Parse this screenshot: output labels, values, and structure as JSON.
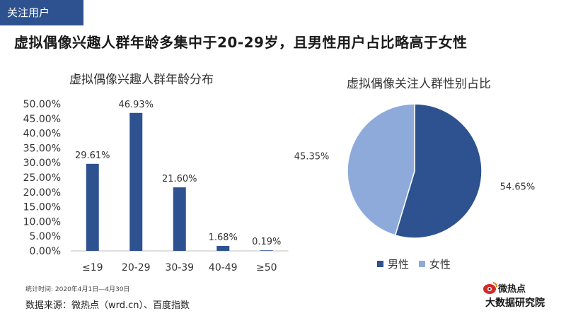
{
  "tag": "关注用户",
  "headline": "虚拟偶像兴趣人群年龄多集中于20-29岁，且男性用户占比略高于女性",
  "colors": {
    "primary": "#2e528f",
    "secondary": "#8eaadb",
    "axis": "#bfbfbf"
  },
  "footer": {
    "time": "统计时间:   2020年4月1日—4月30日",
    "source": "数据来源：微热点（wrd.cn）、百度指数"
  },
  "logo": {
    "top": "微热点",
    "bottom": "大数据研究院"
  },
  "chart_data": [
    {
      "type": "bar",
      "title": "虚拟偶像兴趣人群年龄分布",
      "categories": [
        "≤19",
        "20-29",
        "30-39",
        "40-49",
        "≥50"
      ],
      "values": [
        29.61,
        46.93,
        21.6,
        1.68,
        0.19
      ],
      "data_labels": [
        "29.61%",
        "46.93%",
        "21.60%",
        "1.68%",
        "0.19%"
      ],
      "ylim": [
        0,
        50
      ],
      "yticks": [
        "0.00%",
        "5.00%",
        "10.00%",
        "15.00%",
        "20.00%",
        "25.00%",
        "30.00%",
        "35.00%",
        "40.00%",
        "45.00%",
        "50.00%"
      ],
      "grid": false,
      "legend": "none"
    },
    {
      "type": "pie",
      "title": "虚拟偶像关注人群性别占比",
      "slices": [
        {
          "label": "男性",
          "value": 54.65,
          "display": "54.65%"
        },
        {
          "label": "女性",
          "value": 45.35,
          "display": "45.35%"
        }
      ],
      "legend": "bottom"
    }
  ]
}
